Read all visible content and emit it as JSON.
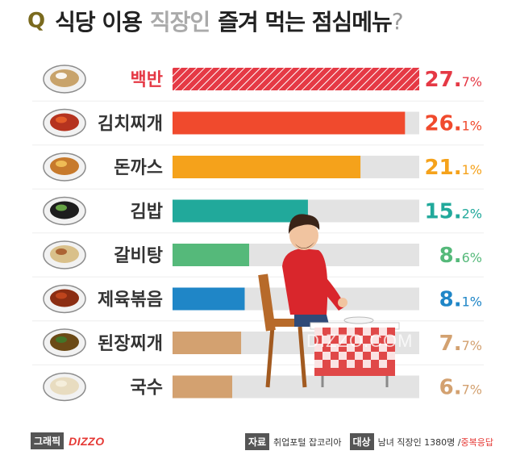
{
  "title": {
    "q": "Q",
    "part1": "식당 이용",
    "part2": "직장인",
    "part3": "즐겨 먹는 점심메뉴",
    "part4": "?"
  },
  "chart_data": {
    "type": "bar",
    "orientation": "horizontal",
    "categories": [
      "백반",
      "김치찌개",
      "돈까스",
      "김밥",
      "갈비탕",
      "제육볶음",
      "된장찌개",
      "국수"
    ],
    "values": [
      27.7,
      26.1,
      21.1,
      15.2,
      8.6,
      8.1,
      7.7,
      6.7
    ],
    "value_labels": [
      {
        "big": "27.",
        "small": "7%"
      },
      {
        "big": "26.",
        "small": "1%"
      },
      {
        "big": "21.",
        "small": "1%"
      },
      {
        "big": "15.",
        "small": "2%"
      },
      {
        "big": "8.",
        "small": "6%"
      },
      {
        "big": "8.",
        "small": "1%"
      },
      {
        "big": "7.",
        "small": "7%"
      },
      {
        "big": "6.",
        "small": "7%"
      }
    ],
    "bar_colors": [
      "#e53945",
      "#f04a2d",
      "#f5a21b",
      "#21a99b",
      "#55b97a",
      "#1f86c7",
      "#d3a170",
      "#d3a170"
    ],
    "track_color": "#e3e3e3",
    "xlim": [
      0,
      27.7
    ],
    "icons": [
      "baekban-food-icon",
      "kimchi-jjigae-food-icon",
      "donkkaseu-food-icon",
      "gimbap-food-icon",
      "galbitang-food-icon",
      "jeyuk-bokkeum-food-icon",
      "doenjang-jjigae-food-icon",
      "guksu-food-icon"
    ]
  },
  "watermark": "DIZZO.COM",
  "footer": {
    "badge": "그래픽",
    "logo": "DIZZO",
    "source_tag": "자료",
    "source": "취업포털 잡코리아",
    "target_tag": "대상",
    "target": "남녀 직장인 1380명 /",
    "target_note": "중복응답"
  }
}
